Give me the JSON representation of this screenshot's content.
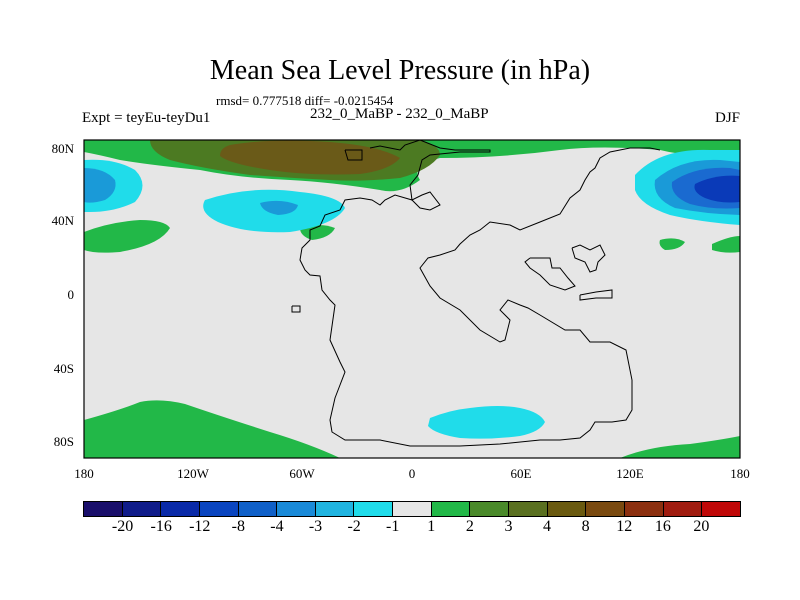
{
  "title": "Mean Sea Level Pressure (in hPa)",
  "stats": "rmsd= 0.777518 diff= -0.0215454",
  "experiment": "Expt = teyEu-teyDu1",
  "subtitle": "232_0_MaBP - 232_0_MaBP",
  "season": "DJF",
  "y_ticks": [
    "80N",
    "40N",
    "0",
    "40S",
    "80S"
  ],
  "x_ticks": [
    "180",
    "120W",
    "60W",
    "0",
    "60E",
    "120E",
    "180"
  ],
  "colorbar": {
    "colors": [
      "#1a0f6b",
      "#101c8a",
      "#0a2aa8",
      "#0a45c0",
      "#1060c8",
      "#1a8ad8",
      "#20b4e0",
      "#20dcea",
      "#e6e6e6",
      "#22b848",
      "#4a8a2a",
      "#5a7020",
      "#6a5a10",
      "#7a4a10",
      "#8c3010",
      "#a01c10",
      "#c00808"
    ],
    "labels": [
      "-20",
      "-16",
      "-12",
      "-8",
      "-4",
      "-3",
      "-2",
      "-1",
      "1",
      "2",
      "3",
      "4",
      "8",
      "12",
      "16",
      "20"
    ]
  },
  "map_colors": {
    "background": "#e6e6e6",
    "green": "#22b848",
    "olive": "#4c7a22",
    "brown": "#6a5a18",
    "cyan": "#20dcea",
    "light_blue": "#1a9ad8",
    "mid_blue": "#1a6ad0",
    "dark_blue": "#0a3ab8"
  }
}
